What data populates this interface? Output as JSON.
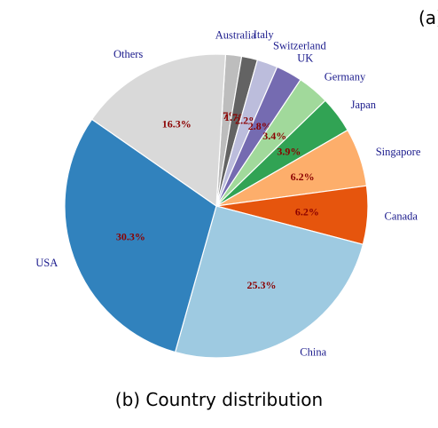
{
  "panel_tag": "(a)",
  "caption": "(b) Country distribution",
  "chart_data": {
    "type": "pie",
    "start": "Others/USA boundary at upper-left, clockwise order",
    "slices": [
      {
        "label": "Australia",
        "value": 1.7,
        "pct_label": "1.7%",
        "color": "#bdbdbd"
      },
      {
        "label": "Italy",
        "value": 1.7,
        "pct_label": "1.7%",
        "color": "#636363"
      },
      {
        "label": "Switzerland",
        "value": 2.2,
        "pct_label": "2.2%",
        "color": "#bcbddc"
      },
      {
        "label": "UK",
        "value": 2.8,
        "pct_label": "2.8%",
        "color": "#756bb1"
      },
      {
        "label": "Germany",
        "value": 3.4,
        "pct_label": "3.4%",
        "color": "#a1d99b"
      },
      {
        "label": "Japan",
        "value": 3.9,
        "pct_label": "3.9%",
        "color": "#31a354"
      },
      {
        "label": "Singapore",
        "value": 6.2,
        "pct_label": "6.2%",
        "color": "#fdae6b"
      },
      {
        "label": "Canada",
        "value": 6.2,
        "pct_label": "6.2%",
        "color": "#e6550d"
      },
      {
        "label": "China",
        "value": 25.3,
        "pct_label": "25.3%",
        "color": "#9ecae1"
      },
      {
        "label": "USA",
        "value": 30.3,
        "pct_label": "30.3%",
        "color": "#3182bd"
      },
      {
        "label": "Others",
        "value": 16.3,
        "pct_label": "16.3%",
        "color": "#d9d9d9"
      }
    ],
    "label_color": "#1a1a8c",
    "pct_color": "#8b0000"
  }
}
